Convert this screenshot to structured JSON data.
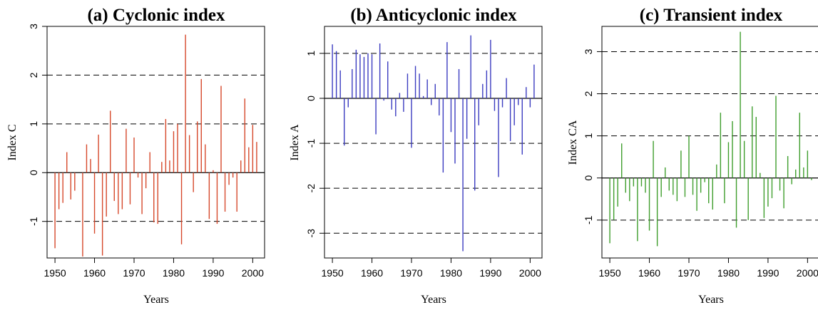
{
  "chart_data": [
    {
      "type": "bar",
      "title": "(a) Cyclonic index",
      "xlabel": "Years",
      "ylabel": "Index C",
      "color": "#d6482b",
      "xlim": [
        1948,
        2003
      ],
      "ylim": [
        -1.75,
        3.0
      ],
      "xticks": [
        1950,
        1960,
        1970,
        1980,
        1990,
        2000
      ],
      "yticks": [
        -1,
        0,
        1,
        2,
        3
      ],
      "yticklabels": [
        "-1",
        "0",
        "1",
        "2",
        "3"
      ],
      "reference_lines": [
        -1,
        1,
        2
      ],
      "grid": false,
      "x": [
        1950,
        1951,
        1952,
        1953,
        1954,
        1955,
        1956,
        1957,
        1958,
        1959,
        1960,
        1961,
        1962,
        1963,
        1964,
        1965,
        1966,
        1967,
        1968,
        1969,
        1970,
        1971,
        1972,
        1973,
        1974,
        1975,
        1976,
        1977,
        1978,
        1979,
        1980,
        1981,
        1982,
        1983,
        1984,
        1985,
        1986,
        1987,
        1988,
        1989,
        1990,
        1991,
        1992,
        1993,
        1994,
        1995,
        1996,
        1997,
        1998,
        1999,
        2000,
        2001
      ],
      "values": [
        -1.55,
        -0.75,
        -0.62,
        0.42,
        -0.55,
        -0.37,
        0.0,
        -1.72,
        0.58,
        0.28,
        -1.25,
        0.78,
        -1.7,
        -0.9,
        1.27,
        -0.58,
        -0.85,
        -0.75,
        0.9,
        -0.65,
        0.72,
        -0.1,
        -0.85,
        -0.32,
        0.42,
        -1.02,
        -1.05,
        0.22,
        1.1,
        0.25,
        0.85,
        1.0,
        -1.47,
        2.83,
        0.77,
        -0.4,
        1.05,
        1.92,
        0.58,
        -0.95,
        0.05,
        -1.05,
        1.78,
        -0.8,
        -0.25,
        -0.1,
        -0.8,
        0.25,
        1.52,
        0.52,
        0.98,
        0.63
      ]
    },
    {
      "type": "bar",
      "title": "(b) Anticyclonic index",
      "xlabel": "Years",
      "ylabel": "Index A",
      "color": "#3b3cc0",
      "xlim": [
        1948,
        2003
      ],
      "ylim": [
        -3.55,
        1.6
      ],
      "xticks": [
        1950,
        1960,
        1970,
        1980,
        1990,
        2000
      ],
      "yticks": [
        -3,
        -2,
        -1,
        0,
        1
      ],
      "yticklabels": [
        "-3",
        "-2",
        "-1",
        "0",
        "1"
      ],
      "reference_lines": [
        -3,
        -2,
        -1,
        1
      ],
      "grid": false,
      "x": [
        1950,
        1951,
        1952,
        1953,
        1954,
        1955,
        1956,
        1957,
        1958,
        1959,
        1960,
        1961,
        1962,
        1963,
        1964,
        1965,
        1966,
        1967,
        1968,
        1969,
        1970,
        1971,
        1972,
        1973,
        1974,
        1975,
        1976,
        1977,
        1978,
        1979,
        1980,
        1981,
        1982,
        1983,
        1984,
        1985,
        1986,
        1987,
        1988,
        1989,
        1990,
        1991,
        1992,
        1993,
        1994,
        1995,
        1996,
        1997,
        1998,
        1999,
        2000,
        2001
      ],
      "values": [
        1.2,
        1.05,
        0.62,
        -1.05,
        -0.2,
        0.65,
        1.08,
        0.98,
        0.92,
        1.0,
        0.98,
        -0.8,
        1.22,
        -0.05,
        0.82,
        -0.25,
        -0.4,
        0.12,
        -0.3,
        0.55,
        -1.1,
        0.72,
        0.55,
        0.05,
        0.42,
        -0.15,
        0.32,
        -0.38,
        -1.65,
        1.25,
        -0.75,
        -1.45,
        0.65,
        -3.4,
        -0.9,
        1.4,
        -2.05,
        -0.6,
        0.32,
        0.62,
        1.3,
        -0.28,
        -1.75,
        -0.2,
        0.45,
        -0.95,
        -0.6,
        -0.15,
        -1.25,
        0.25,
        -0.2,
        0.75
      ]
    },
    {
      "type": "bar",
      "title": "(c) Transient index",
      "xlabel": "Years",
      "ylabel": "Index CA",
      "color": "#3f9e2d",
      "xlim": [
        1948,
        2003
      ],
      "ylim": [
        -1.9,
        3.6
      ],
      "xticks": [
        1950,
        1960,
        1970,
        1980,
        1990,
        2000
      ],
      "yticks": [
        -1,
        0,
        1,
        2,
        3
      ],
      "yticklabels": [
        "-1",
        "0",
        "1",
        "2",
        "3"
      ],
      "reference_lines": [
        -1,
        1,
        2,
        3
      ],
      "grid": false,
      "x": [
        1950,
        1951,
        1952,
        1953,
        1954,
        1955,
        1956,
        1957,
        1958,
        1959,
        1960,
        1961,
        1962,
        1963,
        1964,
        1965,
        1966,
        1967,
        1968,
        1969,
        1970,
        1971,
        1972,
        1973,
        1974,
        1975,
        1976,
        1977,
        1978,
        1979,
        1980,
        1981,
        1982,
        1983,
        1984,
        1985,
        1986,
        1987,
        1988,
        1989,
        1990,
        1991,
        1992,
        1993,
        1994,
        1995,
        1996,
        1997,
        1998,
        1999,
        2000,
        2001
      ],
      "values": [
        -1.55,
        -1.0,
        -0.68,
        0.82,
        -0.35,
        -0.55,
        -0.2,
        -1.5,
        -0.2,
        -0.35,
        -1.25,
        0.88,
        -1.62,
        -0.45,
        0.25,
        -0.3,
        -0.4,
        -0.55,
        0.65,
        -0.45,
        1.0,
        -0.4,
        -0.78,
        -0.35,
        -0.1,
        -0.6,
        -0.75,
        0.32,
        1.55,
        -0.6,
        0.85,
        1.35,
        -1.18,
        3.47,
        0.88,
        -1.0,
        1.7,
        1.45,
        0.12,
        -0.95,
        -0.68,
        -0.48,
        1.95,
        -0.3,
        -0.72,
        0.52,
        -0.15,
        0.2,
        1.55,
        0.25,
        0.65,
        -0.05
      ]
    }
  ]
}
